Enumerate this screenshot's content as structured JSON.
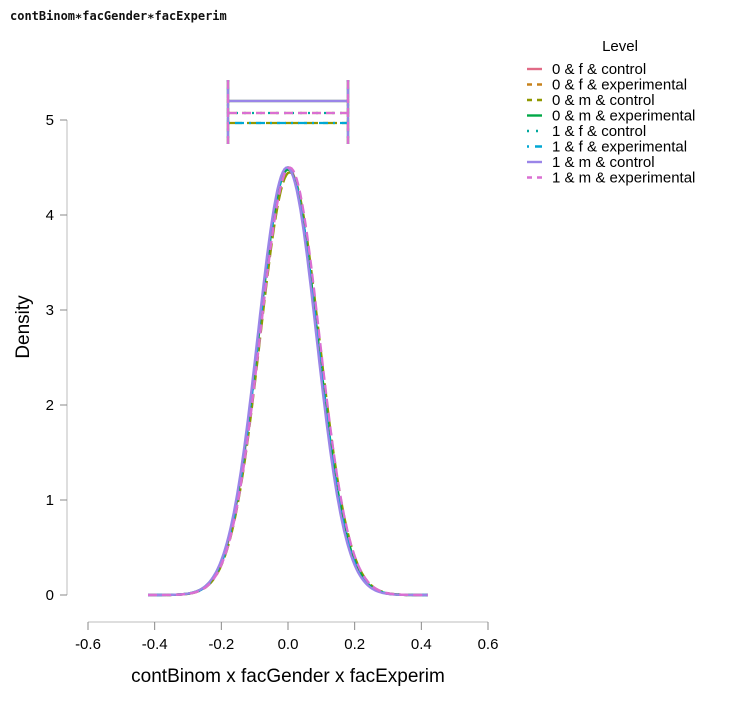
{
  "title": "contBinom∗facGender∗facExperim",
  "chart_data": {
    "type": "line",
    "title": "contBinom∗facGender∗facExperim",
    "xlabel": "contBinom x facGender x facExperim",
    "ylabel": "Density",
    "xlim": [
      -0.6,
      0.6
    ],
    "ylim": [
      0,
      5
    ],
    "x_ticks": [
      "-0.6",
      "-0.4",
      "-0.2",
      "0.0",
      "0.2",
      "0.4",
      "0.6"
    ],
    "y_ticks": [
      "0",
      "1",
      "2",
      "3",
      "4",
      "5"
    ],
    "grid": false,
    "legend_position": "right",
    "legend_title": "Level",
    "series": [
      {
        "name": "0 & f & control",
        "color": "#E16A86",
        "dash": "solid",
        "peak_density": 4.5,
        "mean": 0.0,
        "sd": 0.088
      },
      {
        "name": "0 & f & experimental",
        "color": "#C7821C",
        "dash": "dashed",
        "peak_density": 4.5,
        "mean": 0.0,
        "sd": 0.088
      },
      {
        "name": "0 & m & control",
        "color": "#909800",
        "dash": "longdash",
        "peak_density": 4.45,
        "mean": 0.005,
        "sd": 0.089
      },
      {
        "name": "0 & m & experimental",
        "color": "#00A846",
        "dash": "solid-short",
        "peak_density": 4.48,
        "mean": 0.0,
        "sd": 0.089
      },
      {
        "name": "1 & f & control",
        "color": "#00A89D",
        "dash": "dotted",
        "peak_density": 4.5,
        "mean": 0.0,
        "sd": 0.088
      },
      {
        "name": "1 & f & experimental",
        "color": "#00A7D4",
        "dash": "dotdash",
        "peak_density": 4.5,
        "mean": 0.0,
        "sd": 0.088
      },
      {
        "name": "1 & m & control",
        "color": "#9A85E8",
        "dash": "solid",
        "peak_density": 4.5,
        "mean": -0.003,
        "sd": 0.088
      },
      {
        "name": "1 & m & experimental",
        "color": "#DA6FD2",
        "dash": "dashed",
        "peak_density": 4.5,
        "mean": 0.005,
        "sd": 0.089
      }
    ],
    "density_range": [
      -0.42,
      0.42
    ],
    "intervals": {
      "lower": -0.18,
      "upper": 0.18,
      "levels_y": [
        5.2,
        5.08,
        4.97
      ]
    }
  }
}
